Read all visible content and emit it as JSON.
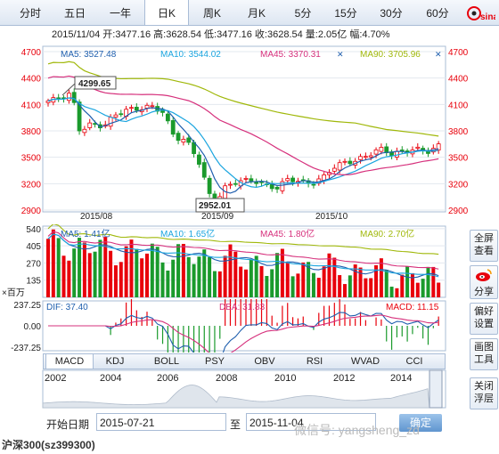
{
  "tabs": [
    "分时",
    "五日",
    "一年",
    "日K",
    "周K",
    "月K",
    "5分",
    "15分",
    "30分",
    "60分"
  ],
  "active_tab": "日K",
  "info": "2015/11/04 开:3477.16 高:3628.54 低:3477.16 收:3628.54 量:2.05亿 幅:4.70%",
  "main": {
    "ma5": "MA5: 3527.48",
    "ma10": "MA10: 3544.02",
    "ma45": "MA45: 3370.31",
    "ma90": "MA90: 3705.96",
    "y_ticks": [
      "4700",
      "4400",
      "4100",
      "3800",
      "3500",
      "3200",
      "2900"
    ],
    "x_ticks": [
      "2015/08",
      "2015/09",
      "2015/10"
    ],
    "high_label": "4299.65",
    "low_label": "2952.01"
  },
  "volume": {
    "ma5": "MA5: 1.41亿",
    "ma10": "MA10: 1.65亿",
    "ma45": "MA45: 1.80亿",
    "ma90": "MA90: 2.70亿",
    "y_ticks": [
      "540",
      "405",
      "270",
      "135"
    ],
    "unit": "×百万"
  },
  "macd": {
    "dif": "DIF: 37.40",
    "dea": "DEA: 31.83",
    "macd": "MACD: 11.15",
    "y_ticks": [
      "237.25",
      "0.00",
      "-237.25"
    ]
  },
  "indicators": [
    "MACD",
    "KDJ",
    "BOLL",
    "PSY",
    "OBV",
    "RSI",
    "WVAD",
    "CCI"
  ],
  "active_indicator": "MACD",
  "timeline_years": [
    "2002",
    "2004",
    "2006",
    "2008",
    "2010",
    "2012",
    "2014"
  ],
  "side_buttons": [
    "全屏查看",
    "分享",
    "偏好设置",
    "画图工具",
    "关闭浮层"
  ],
  "start_label": "开始日期",
  "start_value": "2015-07-21",
  "to_label": "至",
  "end_value": "2015-11-04",
  "confirm_label": "确定",
  "footer": "沪深300(sz399300)",
  "watermark": "微信号: yangsheng_zd",
  "colors": {
    "up": "#e8000b",
    "down": "#1a9a2c",
    "ma5": "#1f5fae",
    "ma10": "#1ba5df",
    "ma45": "#d6307c",
    "ma90": "#a0b80a"
  }
}
